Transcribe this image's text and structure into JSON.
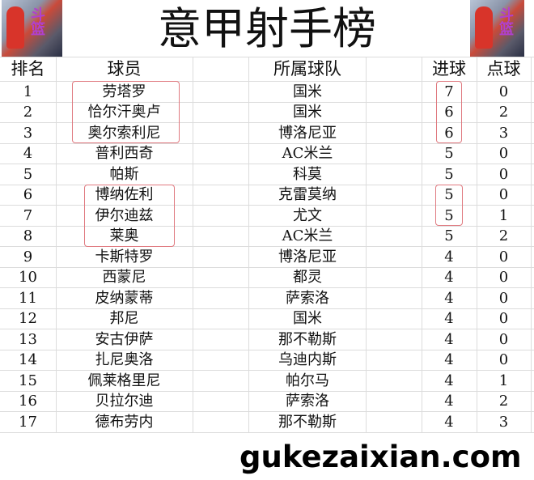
{
  "title": "意甲射手榜",
  "header": {
    "rank": "排名",
    "player": "球员",
    "team": "所属球队",
    "goals": "进球",
    "penalties": "点球"
  },
  "rows": [
    {
      "rank": "1",
      "player": "劳塔罗",
      "team": "国米",
      "goals": "7",
      "penalties": "0"
    },
    {
      "rank": "2",
      "player": "恰尔汗奥卢",
      "team": "国米",
      "goals": "6",
      "penalties": "2"
    },
    {
      "rank": "3",
      "player": "奥尔索利尼",
      "team": "博洛尼亚",
      "goals": "6",
      "penalties": "3"
    },
    {
      "rank": "4",
      "player": "普利西奇",
      "team": "AC米兰",
      "goals": "5",
      "penalties": "0"
    },
    {
      "rank": "5",
      "player": "帕斯",
      "team": "科莫",
      "goals": "5",
      "penalties": "0"
    },
    {
      "rank": "6",
      "player": "博纳佐利",
      "team": "克雷莫纳",
      "goals": "5",
      "penalties": "0"
    },
    {
      "rank": "7",
      "player": "伊尔迪兹",
      "team": "尤文",
      "goals": "5",
      "penalties": "1"
    },
    {
      "rank": "8",
      "player": "莱奥",
      "team": "AC米兰",
      "goals": "5",
      "penalties": "2"
    },
    {
      "rank": "9",
      "player": "卡斯特罗",
      "team": "博洛尼亚",
      "goals": "4",
      "penalties": "0"
    },
    {
      "rank": "10",
      "player": "西蒙尼",
      "team": "都灵",
      "goals": "4",
      "penalties": "0"
    },
    {
      "rank": "11",
      "player": "皮纳蒙蒂",
      "team": "萨索洛",
      "goals": "4",
      "penalties": "0"
    },
    {
      "rank": "12",
      "player": "邦尼",
      "team": "国米",
      "goals": "4",
      "penalties": "0"
    },
    {
      "rank": "13",
      "player": "安古伊萨",
      "team": "那不勒斯",
      "goals": "4",
      "penalties": "0"
    },
    {
      "rank": "14",
      "player": "扎尼奥洛",
      "team": "乌迪内斯",
      "goals": "4",
      "penalties": "0"
    },
    {
      "rank": "15",
      "player": "佩莱格里尼",
      "team": "帕尔马",
      "goals": "4",
      "penalties": "1"
    },
    {
      "rank": "16",
      "player": "贝拉尔迪",
      "team": "萨索洛",
      "goals": "4",
      "penalties": "2"
    },
    {
      "rank": "17",
      "player": "德布劳内",
      "team": "那不勒斯",
      "goals": "4",
      "penalties": "3"
    }
  ],
  "watermark": "gukezaixian.com",
  "image_text": "斗篮",
  "highlight_color": "#e07a80"
}
